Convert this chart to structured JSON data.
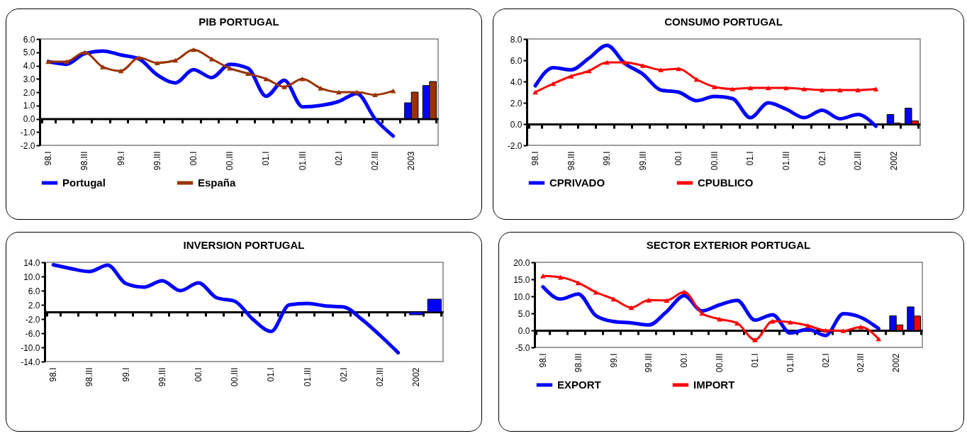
{
  "chart_data": [
    {
      "type": "line",
      "title": "PIB PORTUGAL",
      "categories": [
        "98.I",
        null,
        "98.III",
        null,
        "99.I",
        null,
        "99.III",
        null,
        "00.I",
        null,
        "00.III",
        null,
        "01.I",
        null,
        "01.III",
        null,
        "02.I",
        null,
        "02.III",
        null,
        "2003",
        null
      ],
      "ylim": [
        -2,
        6
      ],
      "yticks": [
        {
          "value": -2,
          "label": "-2.0"
        },
        {
          "value": -1,
          "label": "-1.0"
        },
        {
          "value": 0,
          "label": "0.0"
        },
        {
          "value": 1,
          "label": "1.0"
        },
        {
          "value": 2,
          "label": "2.0"
        },
        {
          "value": 3,
          "label": "3.0"
        },
        {
          "value": 4,
          "label": "4.0"
        },
        {
          "value": 5,
          "label": "5.0"
        },
        {
          "value": 6,
          "label": "6.0"
        }
      ],
      "legend": "bottom",
      "series": [
        {
          "name": "Portugal",
          "color": "#0000ff",
          "values": [
            4.3,
            4.1,
            4.9,
            5.1,
            4.8,
            4.5,
            3.3,
            2.7,
            3.7,
            3.1,
            4.1,
            3.8,
            1.7,
            2.9,
            0.9,
            1.0,
            1.3,
            1.9,
            0.0,
            -1.3,
            null,
            null
          ]
        },
        {
          "name": "España",
          "color": "#993300",
          "marker": "triangle",
          "values": [
            4.3,
            4.3,
            5.0,
            3.9,
            3.6,
            4.6,
            4.2,
            4.4,
            5.2,
            4.5,
            3.8,
            3.4,
            3.0,
            2.4,
            3.0,
            2.3,
            2.0,
            2.0,
            1.8,
            2.1,
            null,
            null
          ]
        },
        {
          "type": "bar",
          "color": "#0000ff",
          "values": [
            null,
            null,
            null,
            null,
            null,
            null,
            null,
            null,
            null,
            null,
            null,
            null,
            null,
            null,
            null,
            null,
            null,
            null,
            null,
            null,
            1.2,
            2.5
          ]
        },
        {
          "type": "bar",
          "color": "#993300",
          "values": [
            null,
            null,
            null,
            null,
            null,
            null,
            null,
            null,
            null,
            null,
            null,
            null,
            null,
            null,
            null,
            null,
            null,
            null,
            null,
            null,
            2.0,
            2.8
          ]
        }
      ]
    },
    {
      "type": "line",
      "title": "CONSUMO PORTUGAL",
      "categories": [
        "98.I",
        null,
        "98.III",
        null,
        "99.I",
        null,
        "99.III",
        null,
        "00.I",
        null,
        "00.III",
        null,
        "01.I",
        null,
        "01.III",
        null,
        "02.I",
        null,
        "02.III",
        null,
        "2002",
        null
      ],
      "ylim": [
        -2,
        8
      ],
      "yticks": [
        {
          "value": -2,
          "label": "-2.0"
        },
        {
          "value": 0,
          "label": "0.0"
        },
        {
          "value": 2,
          "label": "2.0"
        },
        {
          "value": 4,
          "label": "4.0"
        },
        {
          "value": 6,
          "label": "6.0"
        },
        {
          "value": 8,
          "label": "8.0"
        }
      ],
      "legend": "bottom",
      "series": [
        {
          "name": "CPRIVADO",
          "color": "#0000ff",
          "values": [
            3.6,
            5.3,
            5.1,
            6.2,
            7.4,
            5.7,
            4.7,
            3.2,
            3.0,
            2.2,
            2.6,
            2.4,
            0.6,
            2.0,
            1.4,
            0.6,
            1.3,
            0.5,
            0.9,
            -0.2,
            null,
            null
          ]
        },
        {
          "name": "CPUBLICO",
          "color": "#ff0000",
          "marker": "triangle",
          "values": [
            3.0,
            3.8,
            4.5,
            5.0,
            5.8,
            5.8,
            5.5,
            5.1,
            5.2,
            4.2,
            3.5,
            3.3,
            3.4,
            3.4,
            3.4,
            3.3,
            3.2,
            3.2,
            3.2,
            3.3,
            null,
            null
          ]
        },
        {
          "type": "bar",
          "color": "#0000ff",
          "values": [
            null,
            null,
            null,
            null,
            null,
            null,
            null,
            null,
            null,
            null,
            null,
            null,
            null,
            null,
            null,
            null,
            null,
            null,
            null,
            null,
            0.9,
            1.5
          ]
        },
        {
          "type": "bar",
          "color": "#ff0000",
          "values": [
            null,
            null,
            null,
            null,
            null,
            null,
            null,
            null,
            null,
            null,
            null,
            null,
            null,
            null,
            null,
            null,
            null,
            null,
            null,
            null,
            0.1,
            0.3
          ]
        }
      ]
    },
    {
      "type": "line",
      "title": "INVERSION PORTUGAL",
      "categories": [
        "98.I",
        null,
        "98.III",
        null,
        "99.I",
        null,
        "99.III",
        null,
        "00.I",
        null,
        "00.III",
        null,
        "01.I",
        null,
        "01.III",
        null,
        "02.I",
        null,
        "02.III",
        null,
        "2002",
        null
      ],
      "ylim": [
        -14,
        14
      ],
      "yticks": [
        {
          "value": -14,
          "label": "-14.0"
        },
        {
          "value": -10,
          "label": "-10.0"
        },
        {
          "value": -6,
          "label": "-6.0"
        },
        {
          "value": -2,
          "label": "-2.0"
        },
        {
          "value": 2,
          "label": "2.0"
        },
        {
          "value": 6,
          "label": "6.0"
        },
        {
          "value": 10,
          "label": "10.0"
        },
        {
          "value": 14,
          "label": "14.0"
        }
      ],
      "series": [
        {
          "color": "#0000ff",
          "values": [
            13.3,
            12.2,
            11.4,
            13.2,
            8.0,
            7.0,
            8.8,
            6.0,
            8.2,
            4.0,
            3.0,
            -2.1,
            -5.5,
            2.0,
            2.4,
            1.7,
            1.4,
            -2.1,
            -6.6,
            -11.5,
            null,
            null
          ]
        },
        {
          "type": "bar",
          "color": "#0000ff",
          "values": [
            null,
            null,
            null,
            null,
            null,
            null,
            null,
            null,
            null,
            null,
            null,
            null,
            null,
            null,
            null,
            null,
            null,
            null,
            null,
            null,
            -0.8,
            3.6
          ]
        }
      ]
    },
    {
      "type": "line",
      "title": "SECTOR EXTERIOR PORTUGAL",
      "categories": [
        "98.I",
        null,
        "98.III",
        null,
        "99.I",
        null,
        "99.III",
        null,
        "00.I",
        null,
        "00.III",
        null,
        "01.I",
        null,
        "01.III",
        null,
        "02.I",
        null,
        "02.III",
        null,
        "2002",
        null
      ],
      "ylim": [
        -5,
        20
      ],
      "yticks": [
        {
          "value": -5,
          "label": "-5.0"
        },
        {
          "value": 0,
          "label": "0.0"
        },
        {
          "value": 5,
          "label": "5.0"
        },
        {
          "value": 10,
          "label": "10.0"
        },
        {
          "value": 15,
          "label": "15.0"
        },
        {
          "value": 20,
          "label": "20.0"
        }
      ],
      "legend": "bottom",
      "series": [
        {
          "name": "EXPORT",
          "color": "#0000ff",
          "values": [
            12.8,
            9.2,
            10.7,
            4.3,
            2.6,
            2.2,
            1.6,
            5.5,
            10.2,
            5.7,
            7.5,
            8.8,
            3.0,
            4.6,
            -0.8,
            0.3,
            -1.5,
            4.9,
            3.8,
            0.5,
            null,
            null
          ]
        },
        {
          "name": "IMPORT",
          "color": "#ff0000",
          "marker": "triangle",
          "values": [
            16.0,
            15.6,
            14.0,
            11.2,
            9.2,
            6.7,
            8.9,
            8.8,
            11.3,
            5.0,
            3.3,
            2.1,
            -2.8,
            2.7,
            2.4,
            1.4,
            0.0,
            -0.1,
            1.0,
            -2.5,
            null,
            null
          ]
        },
        {
          "type": "bar",
          "color": "#0000ff",
          "values": [
            null,
            null,
            null,
            null,
            null,
            null,
            null,
            null,
            null,
            null,
            null,
            null,
            null,
            null,
            null,
            null,
            null,
            null,
            null,
            null,
            4.3,
            6.9
          ]
        },
        {
          "type": "bar",
          "color": "#ff0000",
          "values": [
            null,
            null,
            null,
            null,
            null,
            null,
            null,
            null,
            null,
            null,
            null,
            null,
            null,
            null,
            null,
            null,
            null,
            null,
            null,
            null,
            1.6,
            4.2
          ]
        }
      ]
    }
  ]
}
